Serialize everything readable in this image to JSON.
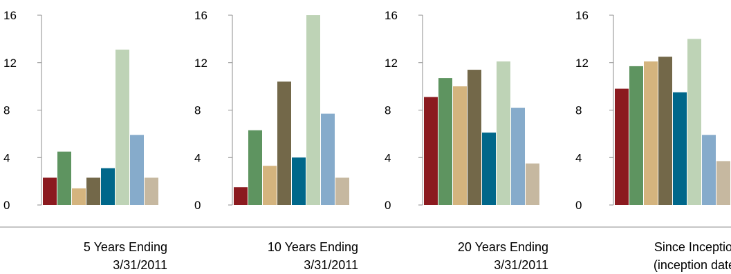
{
  "colors": [
    "#8b1a1f",
    "#5e9460",
    "#d4b47e",
    "#736849",
    "#00678a",
    "#bed3b6",
    "#86abcb",
    "#c6b8a0"
  ],
  "chart_data": [
    {
      "type": "bar",
      "caption": [
        "5 Years Ending",
        "3/31/2011"
      ],
      "values": [
        2.3,
        4.5,
        1.4,
        2.3,
        3.1,
        13.1,
        5.9,
        2.3
      ],
      "ylim": [
        0,
        16
      ],
      "yticks": [
        "0",
        "4",
        "8",
        "12",
        "16"
      ],
      "grid": false
    },
    {
      "type": "bar",
      "caption": [
        "10 Years Ending",
        "3/31/2011"
      ],
      "values": [
        1.5,
        6.3,
        3.3,
        10.4,
        4.0,
        16.0,
        7.7,
        2.3
      ],
      "ylim": [
        0,
        16
      ],
      "yticks": [
        "0",
        "4",
        "8",
        "12",
        "16"
      ],
      "grid": false
    },
    {
      "type": "bar",
      "caption": [
        "20 Years Ending",
        "3/31/2011"
      ],
      "values": [
        9.1,
        10.7,
        10.0,
        11.4,
        6.1,
        12.1,
        8.2,
        3.5
      ],
      "ylim": [
        0,
        16
      ],
      "yticks": [
        "0",
        "4",
        "8",
        "12",
        "16"
      ],
      "grid": false
    },
    {
      "type": "bar",
      "caption": [
        "Since Inception",
        "(inception date)"
      ],
      "values": [
        9.8,
        11.7,
        12.1,
        12.5,
        9.5,
        14.0,
        5.9,
        3.7
      ],
      "ylim": [
        0,
        16
      ],
      "yticks": [
        "0",
        "4",
        "8",
        "12",
        "16"
      ],
      "grid": false
    }
  ]
}
